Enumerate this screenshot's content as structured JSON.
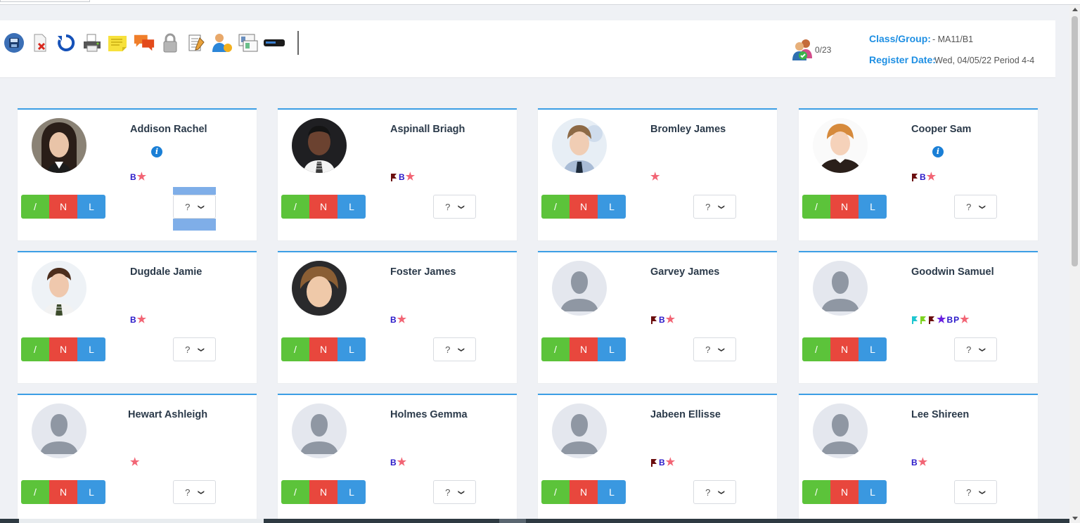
{
  "toolbar": {
    "icons": [
      "save-icon",
      "delete-icon",
      "refresh-icon",
      "print-icon",
      "sticky-note-icon",
      "messages-icon",
      "lock-icon",
      "notes-icon",
      "user-settings-icon",
      "id-card-icon",
      "badge-scanner-icon"
    ]
  },
  "header": {
    "count": "0/23",
    "class_label": "Class/Group:",
    "class_value": " - MA11/B1",
    "date_label": "Register Date:",
    "date_value": "Wed, 04/05/22 Period 4-4"
  },
  "buttons": {
    "present": "/",
    "late": "N",
    "l": "L",
    "select_value": "?"
  },
  "students": [
    {
      "name": "Addison Rachel",
      "photo": "girl-dark-hair",
      "info": "i",
      "markers": [
        "B",
        "star"
      ]
    },
    {
      "name": "Aspinall Briagh",
      "photo": "boy-dark",
      "markers": [
        "flag-maroon",
        "B",
        "star"
      ]
    },
    {
      "name": "Bromley James",
      "photo": "boy-light",
      "markers": [
        "star"
      ]
    },
    {
      "name": "Cooper Sam",
      "photo": "boy-ginger",
      "info": "i",
      "markers": [
        "flag-maroon",
        "B",
        "star"
      ]
    },
    {
      "name": "Dugdale Jamie",
      "photo": "boy-brown",
      "markers": [
        "B",
        "star"
      ]
    },
    {
      "name": "Foster James",
      "photo": "boy-fair",
      "markers": [
        "B",
        "star"
      ]
    },
    {
      "name": "Garvey James",
      "photo": "placeholder",
      "markers": [
        "flag-maroon",
        "B",
        "star"
      ]
    },
    {
      "name": "Goodwin Samuel",
      "photo": "placeholder",
      "markers": [
        "flag-cyan",
        "flag-green",
        "flag-maroon",
        "star-purple",
        "B",
        "P",
        "star"
      ]
    },
    {
      "name": "Hewart Ashleigh",
      "photo": "placeholder",
      "markers": [
        "star"
      ]
    },
    {
      "name": "Holmes Gemma",
      "photo": "placeholder",
      "markers": [
        "B",
        "star"
      ]
    },
    {
      "name": "Jabeen Ellisse",
      "photo": "placeholder",
      "markers": [
        "flag-maroon",
        "B",
        "star"
      ]
    },
    {
      "name": "Lee Shireen",
      "photo": "placeholder",
      "markers": [
        "B",
        "star"
      ]
    }
  ],
  "colors": {
    "accent": "#1e8fe3",
    "present": "#5cc33a",
    "absent": "#e8473d",
    "late": "#3a98e0",
    "star": "#f26575",
    "mark_b": "#2a19c9"
  }
}
